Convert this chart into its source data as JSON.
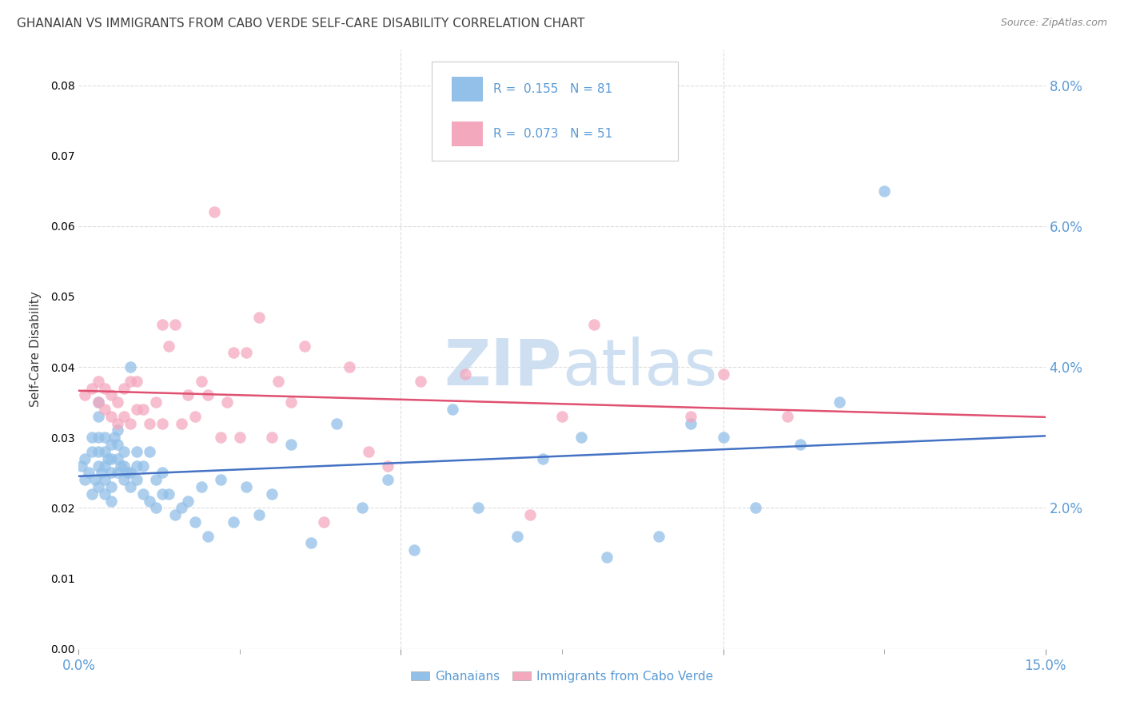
{
  "title": "GHANAIAN VS IMMIGRANTS FROM CABO VERDE SELF-CARE DISABILITY CORRELATION CHART",
  "source": "Source: ZipAtlas.com",
  "ylabel": "Self-Care Disability",
  "xlim": [
    0.0,
    0.15
  ],
  "ylim": [
    0.0,
    0.085
  ],
  "yticks": [
    0.02,
    0.04,
    0.06,
    0.08
  ],
  "ytick_labels": [
    "2.0%",
    "4.0%",
    "6.0%",
    "8.0%"
  ],
  "xticks_major": [
    0.0,
    0.05,
    0.1,
    0.15
  ],
  "xtick_labels_show": [
    "0.0%",
    "",
    "",
    "15.0%"
  ],
  "xticks_minor": [
    0.025,
    0.075,
    0.125
  ],
  "ghanaian_color": "#92C0E8",
  "cabo_verde_color": "#F4A8BE",
  "ghanaian_line_color": "#4472C4",
  "cabo_verde_line_color": "#E05070",
  "title_color": "#404040",
  "axis_color": "#5B9BD5",
  "watermark_color": "#C8DCF0",
  "background_color": "#FFFFFF",
  "grid_color": "#DDDDDD",
  "ghanaian_R": 0.155,
  "ghanaian_N": 81,
  "cabo_verde_R": 0.073,
  "cabo_verde_N": 51,
  "ghanaian_x": [
    0.0005,
    0.001,
    0.001,
    0.0015,
    0.002,
    0.002,
    0.002,
    0.0025,
    0.003,
    0.003,
    0.003,
    0.003,
    0.003,
    0.003,
    0.0035,
    0.004,
    0.004,
    0.004,
    0.004,
    0.004,
    0.0045,
    0.005,
    0.005,
    0.005,
    0.005,
    0.005,
    0.0055,
    0.006,
    0.006,
    0.006,
    0.006,
    0.0065,
    0.007,
    0.007,
    0.007,
    0.0075,
    0.008,
    0.008,
    0.008,
    0.009,
    0.009,
    0.009,
    0.01,
    0.01,
    0.011,
    0.011,
    0.012,
    0.012,
    0.013,
    0.013,
    0.014,
    0.015,
    0.016,
    0.017,
    0.018,
    0.019,
    0.02,
    0.022,
    0.024,
    0.026,
    0.028,
    0.03,
    0.033,
    0.036,
    0.04,
    0.044,
    0.048,
    0.052,
    0.058,
    0.062,
    0.068,
    0.072,
    0.078,
    0.082,
    0.09,
    0.095,
    0.1,
    0.105,
    0.112,
    0.118,
    0.125
  ],
  "ghanaian_y": [
    0.026,
    0.024,
    0.027,
    0.025,
    0.022,
    0.028,
    0.03,
    0.024,
    0.023,
    0.026,
    0.028,
    0.03,
    0.033,
    0.035,
    0.025,
    0.022,
    0.024,
    0.026,
    0.028,
    0.03,
    0.027,
    0.021,
    0.023,
    0.025,
    0.027,
    0.029,
    0.03,
    0.025,
    0.027,
    0.029,
    0.031,
    0.026,
    0.024,
    0.026,
    0.028,
    0.025,
    0.023,
    0.025,
    0.04,
    0.024,
    0.026,
    0.028,
    0.022,
    0.026,
    0.021,
    0.028,
    0.02,
    0.024,
    0.022,
    0.025,
    0.022,
    0.019,
    0.02,
    0.021,
    0.018,
    0.023,
    0.016,
    0.024,
    0.018,
    0.023,
    0.019,
    0.022,
    0.029,
    0.015,
    0.032,
    0.02,
    0.024,
    0.014,
    0.034,
    0.02,
    0.016,
    0.027,
    0.03,
    0.013,
    0.016,
    0.032,
    0.03,
    0.02,
    0.029,
    0.035,
    0.065
  ],
  "cabo_verde_x": [
    0.001,
    0.002,
    0.003,
    0.003,
    0.004,
    0.004,
    0.005,
    0.005,
    0.006,
    0.006,
    0.007,
    0.007,
    0.008,
    0.008,
    0.009,
    0.009,
    0.01,
    0.011,
    0.012,
    0.013,
    0.013,
    0.014,
    0.015,
    0.016,
    0.017,
    0.018,
    0.019,
    0.02,
    0.021,
    0.022,
    0.023,
    0.024,
    0.025,
    0.026,
    0.028,
    0.03,
    0.031,
    0.033,
    0.035,
    0.038,
    0.042,
    0.045,
    0.048,
    0.053,
    0.06,
    0.07,
    0.075,
    0.08,
    0.095,
    0.1,
    0.11
  ],
  "cabo_verde_y": [
    0.036,
    0.037,
    0.035,
    0.038,
    0.034,
    0.037,
    0.033,
    0.036,
    0.032,
    0.035,
    0.033,
    0.037,
    0.032,
    0.038,
    0.034,
    0.038,
    0.034,
    0.032,
    0.035,
    0.032,
    0.046,
    0.043,
    0.046,
    0.032,
    0.036,
    0.033,
    0.038,
    0.036,
    0.062,
    0.03,
    0.035,
    0.042,
    0.03,
    0.042,
    0.047,
    0.03,
    0.038,
    0.035,
    0.043,
    0.018,
    0.04,
    0.028,
    0.026,
    0.038,
    0.039,
    0.019,
    0.033,
    0.046,
    0.033,
    0.039,
    0.033
  ]
}
